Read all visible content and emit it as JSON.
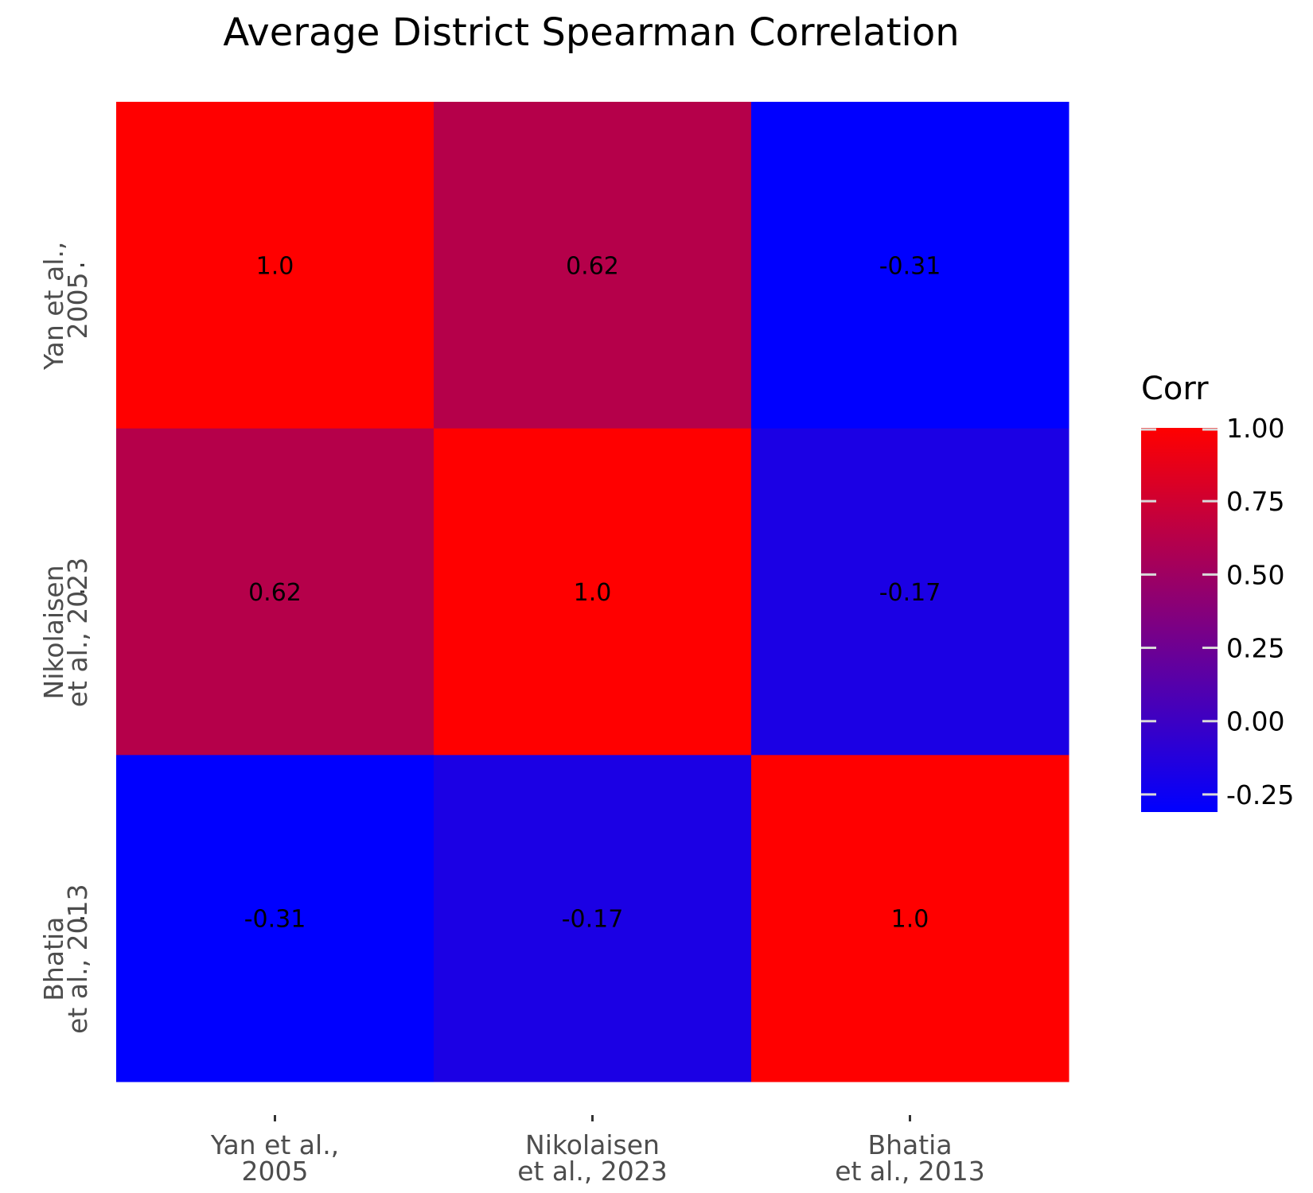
{
  "chart_data": {
    "type": "heatmap",
    "title": "Average District Spearman Correlation",
    "xlabel": "",
    "ylabel": "",
    "x_categories": [
      [
        "Yan et al.,",
        "2005"
      ],
      [
        "Nikolaisen",
        "et al., 2023"
      ],
      [
        "Bhatia",
        "et al., 2013"
      ]
    ],
    "y_categories": [
      [
        "Yan et al.,",
        "2005"
      ],
      [
        "Nikolaisen",
        "et al., 2023"
      ],
      [
        "Bhatia",
        "et al., 2013"
      ]
    ],
    "values": [
      [
        1.0,
        0.62,
        -0.31
      ],
      [
        0.62,
        1.0,
        -0.17
      ],
      [
        -0.31,
        -0.17,
        1.0
      ]
    ],
    "cell_labels": [
      [
        "1.0",
        "0.62",
        "-0.31"
      ],
      [
        "0.62",
        "1.0",
        "-0.17"
      ],
      [
        "-0.31",
        "-0.17",
        "1.0"
      ]
    ],
    "legend": {
      "title": "Corr",
      "placement": "right",
      "range": [
        -0.31,
        1.0
      ],
      "ticks": [
        1.0,
        0.75,
        0.5,
        0.25,
        0.0,
        -0.25
      ],
      "tick_labels": [
        "1.00",
        "0.75",
        "0.50",
        "0.25",
        "0.00",
        "-0.25"
      ],
      "low_color": "#0000ff",
      "mid_color": "#800080",
      "high_color": "#ff0000"
    },
    "grid": false
  }
}
